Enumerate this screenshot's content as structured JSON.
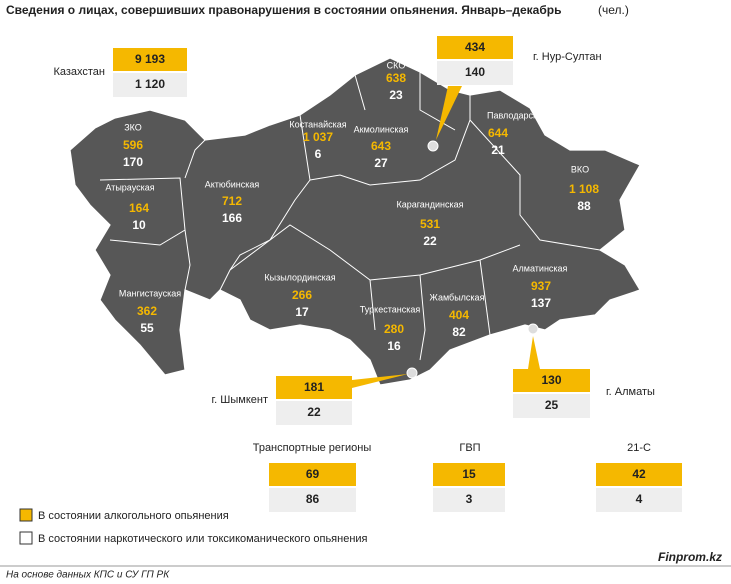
{
  "header": {
    "title": "Сведения о лицах, совершивших правонарушения в состоянии опьянения. Январь–декабрь",
    "unit": "(чел.)"
  },
  "regions": [
    {
      "name": "ЗКО",
      "alcohol": "596",
      "drug": "170"
    },
    {
      "name": "Атырауская",
      "alcohol": "164",
      "drug": "10"
    },
    {
      "name": "Актюбинская",
      "alcohol": "712",
      "drug": "166"
    },
    {
      "name": "Мангистауская",
      "alcohol": "362",
      "drug": "55"
    },
    {
      "name": "Костанайская",
      "alcohol": "1 037",
      "drug": "6"
    },
    {
      "name": "СКО",
      "alcohol": "638",
      "drug": "23"
    },
    {
      "name": "Акмолинская",
      "alcohol": "643",
      "drug": "27"
    },
    {
      "name": "Павлодарская",
      "alcohol": "644",
      "drug": "21"
    },
    {
      "name": "ВКО",
      "alcohol": "1 108",
      "drug": "88"
    },
    {
      "name": "Карагандинская",
      "alcohol": "531",
      "drug": "22"
    },
    {
      "name": "Кызылординская",
      "alcohol": "266",
      "drug": "17"
    },
    {
      "name": "Туркестанская",
      "alcohol": "280",
      "drug": "16"
    },
    {
      "name": "Жамбылская",
      "alcohol": "404",
      "drug": "82"
    },
    {
      "name": "Алматинская",
      "alcohol": "937",
      "drug": "137"
    }
  ],
  "boxes": [
    {
      "name": "Казахстан",
      "alcohol": "9 193",
      "drug": "1 120"
    },
    {
      "name": "г. Нур-Султан",
      "alcohol": "434",
      "drug": "140"
    },
    {
      "name": "г. Шымкент",
      "alcohol": "181",
      "drug": "22"
    },
    {
      "name": "г. Алматы",
      "alcohol": "130",
      "drug": "25"
    },
    {
      "name": "Транспортные регионы",
      "alcohol": "69",
      "drug": "86"
    },
    {
      "name": "ГВП",
      "alcohol": "15",
      "drug": "3"
    },
    {
      "name": "21-С",
      "alcohol": "42",
      "drug": "4"
    }
  ],
  "legend": [
    "В состоянии алкогольного опьянения",
    "В состоянии наркотического или токсикоманического опьянения"
  ],
  "footer": {
    "source": "На основе данных КПС и СУ ГП РК",
    "brand": "Finprom.kz"
  }
}
